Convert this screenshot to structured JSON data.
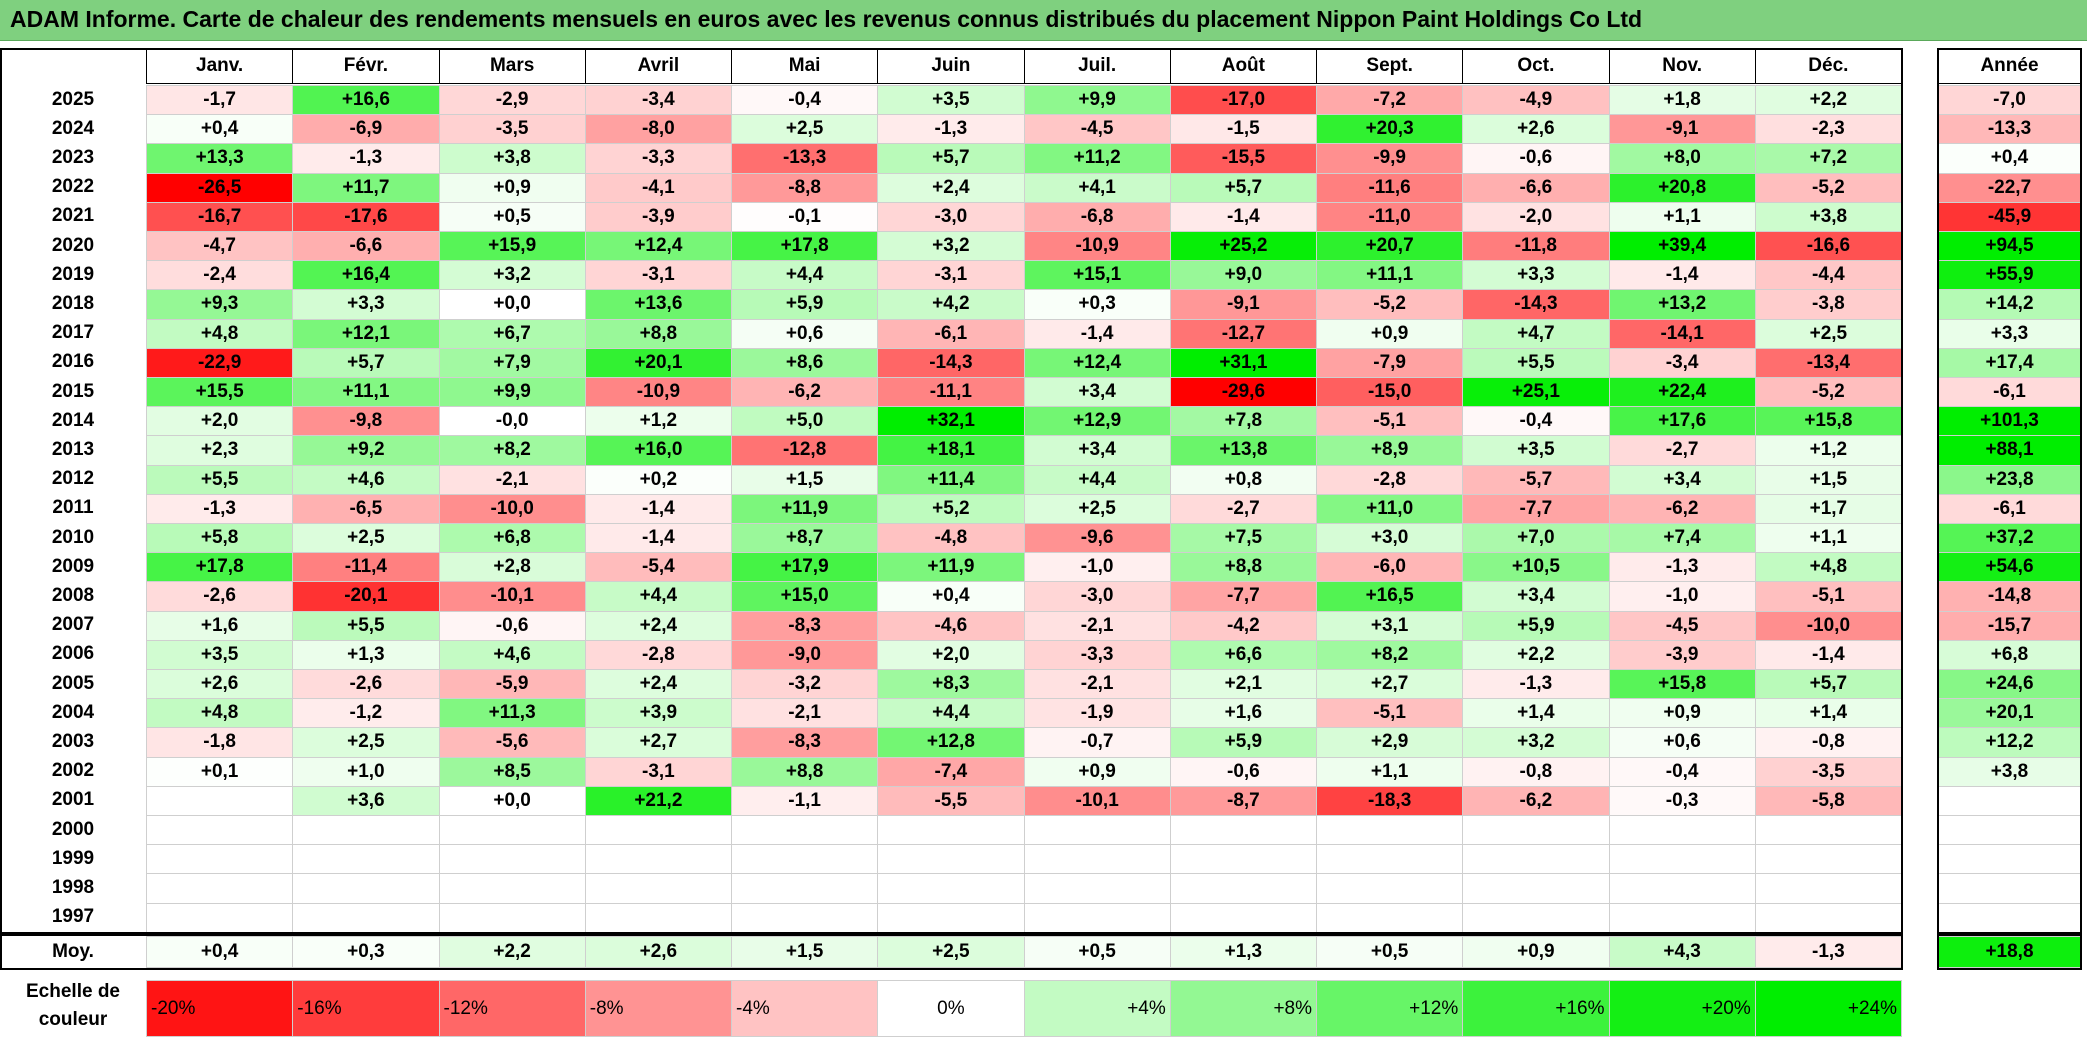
{
  "title": "ADAM Informe. Carte de chaleur des rendements mensuels en euros avec les revenus connus distribués du placement Nippon Paint Holdings Co Ltd",
  "chart_data": {
    "type": "heatmap",
    "title": "ADAM Informe. Carte de chaleur des rendements mensuels en euros avec les revenus connus distribués du placement Nippon Paint Holdings Co Ltd",
    "columns": [
      "Janv.",
      "Févr.",
      "Mars",
      "Avril",
      "Mai",
      "Juin",
      "Juil.",
      "Août",
      "Sept.",
      "Oct.",
      "Nov.",
      "Déc."
    ],
    "year_column_label": "Année",
    "rows": [
      {
        "year": "2025",
        "values": [
          "-1,7",
          "+16,6",
          "-2,9",
          "-3,4",
          "-0,4",
          "+3,5",
          "+9,9",
          "-17,0",
          "-7,2",
          "-4,9",
          "+1,8",
          "+2,2"
        ],
        "annual": "-7,0"
      },
      {
        "year": "2024",
        "values": [
          "+0,4",
          "-6,9",
          "-3,5",
          "-8,0",
          "+2,5",
          "-1,3",
          "-4,5",
          "-1,5",
          "+20,3",
          "+2,6",
          "-9,1",
          "-2,3"
        ],
        "annual": "-13,3"
      },
      {
        "year": "2023",
        "values": [
          "+13,3",
          "-1,3",
          "+3,8",
          "-3,3",
          "-13,3",
          "+5,7",
          "+11,2",
          "-15,5",
          "-9,9",
          "-0,6",
          "+8,0",
          "+7,2"
        ],
        "annual": "+0,4"
      },
      {
        "year": "2022",
        "values": [
          "-26,5",
          "+11,7",
          "+0,9",
          "-4,1",
          "-8,8",
          "+2,4",
          "+4,1",
          "+5,7",
          "-11,6",
          "-6,6",
          "+20,8",
          "-5,2"
        ],
        "annual": "-22,7"
      },
      {
        "year": "2021",
        "values": [
          "-16,7",
          "-17,6",
          "+0,5",
          "-3,9",
          "-0,1",
          "-3,0",
          "-6,8",
          "-1,4",
          "-11,0",
          "-2,0",
          "+1,1",
          "+3,8"
        ],
        "annual": "-45,9"
      },
      {
        "year": "2020",
        "values": [
          "-4,7",
          "-6,6",
          "+15,9",
          "+12,4",
          "+17,8",
          "+3,2",
          "-10,9",
          "+25,2",
          "+20,7",
          "-11,8",
          "+39,4",
          "-16,6"
        ],
        "annual": "+94,5"
      },
      {
        "year": "2019",
        "values": [
          "-2,4",
          "+16,4",
          "+3,2",
          "-3,1",
          "+4,4",
          "-3,1",
          "+15,1",
          "+9,0",
          "+11,1",
          "+3,3",
          "-1,4",
          "-4,4"
        ],
        "annual": "+55,9"
      },
      {
        "year": "2018",
        "values": [
          "+9,3",
          "+3,3",
          "+0,0",
          "+13,6",
          "+5,9",
          "+4,2",
          "+0,3",
          "-9,1",
          "-5,2",
          "-14,3",
          "+13,2",
          "-3,8"
        ],
        "annual": "+14,2"
      },
      {
        "year": "2017",
        "values": [
          "+4,8",
          "+12,1",
          "+6,7",
          "+8,8",
          "+0,6",
          "-6,1",
          "-1,4",
          "-12,7",
          "+0,9",
          "+4,7",
          "-14,1",
          "+2,5"
        ],
        "annual": "+3,3"
      },
      {
        "year": "2016",
        "values": [
          "-22,9",
          "+5,7",
          "+7,9",
          "+20,1",
          "+8,6",
          "-14,3",
          "+12,4",
          "+31,1",
          "-7,9",
          "+5,5",
          "-3,4",
          "-13,4"
        ],
        "annual": "+17,4"
      },
      {
        "year": "2015",
        "values": [
          "+15,5",
          "+11,1",
          "+9,9",
          "-10,9",
          "-6,2",
          "-11,1",
          "+3,4",
          "-29,6",
          "-15,0",
          "+25,1",
          "+22,4",
          "-5,2"
        ],
        "annual": "-6,1"
      },
      {
        "year": "2014",
        "values": [
          "+2,0",
          "-9,8",
          "-0,0",
          "+1,2",
          "+5,0",
          "+32,1",
          "+12,9",
          "+7,8",
          "-5,1",
          "-0,4",
          "+17,6",
          "+15,8"
        ],
        "annual": "+101,3"
      },
      {
        "year": "2013",
        "values": [
          "+2,3",
          "+9,2",
          "+8,2",
          "+16,0",
          "-12,8",
          "+18,1",
          "+3,4",
          "+13,8",
          "+8,9",
          "+3,5",
          "-2,7",
          "+1,2"
        ],
        "annual": "+88,1"
      },
      {
        "year": "2012",
        "values": [
          "+5,5",
          "+4,6",
          "-2,1",
          "+0,2",
          "+1,5",
          "+11,4",
          "+4,4",
          "+0,8",
          "-2,8",
          "-5,7",
          "+3,4",
          "+1,5"
        ],
        "annual": "+23,8"
      },
      {
        "year": "2011",
        "values": [
          "-1,3",
          "-6,5",
          "-10,0",
          "-1,4",
          "+11,9",
          "+5,2",
          "+2,5",
          "-2,7",
          "+11,0",
          "-7,7",
          "-6,2",
          "+1,7"
        ],
        "annual": "-6,1"
      },
      {
        "year": "2010",
        "values": [
          "+5,8",
          "+2,5",
          "+6,8",
          "-1,4",
          "+8,7",
          "-4,8",
          "-9,6",
          "+7,5",
          "+3,0",
          "+7,0",
          "+7,4",
          "+1,1"
        ],
        "annual": "+37,2"
      },
      {
        "year": "2009",
        "values": [
          "+17,8",
          "-11,4",
          "+2,8",
          "-5,4",
          "+17,9",
          "+11,9",
          "-1,0",
          "+8,8",
          "-6,0",
          "+10,5",
          "-1,3",
          "+4,8"
        ],
        "annual": "+54,6"
      },
      {
        "year": "2008",
        "values": [
          "-2,6",
          "-20,1",
          "-10,1",
          "+4,4",
          "+15,0",
          "+0,4",
          "-3,0",
          "-7,7",
          "+16,5",
          "+3,4",
          "-1,0",
          "-5,1"
        ],
        "annual": "-14,8"
      },
      {
        "year": "2007",
        "values": [
          "+1,6",
          "+5,5",
          "-0,6",
          "+2,4",
          "-8,3",
          "-4,6",
          "-2,1",
          "-4,2",
          "+3,1",
          "+5,9",
          "-4,5",
          "-10,0"
        ],
        "annual": "-15,7"
      },
      {
        "year": "2006",
        "values": [
          "+3,5",
          "+1,3",
          "+4,6",
          "-2,8",
          "-9,0",
          "+2,0",
          "-3,3",
          "+6,6",
          "+8,2",
          "+2,2",
          "-3,9",
          "-1,4"
        ],
        "annual": "+6,8"
      },
      {
        "year": "2005",
        "values": [
          "+2,6",
          "-2,6",
          "-5,9",
          "+2,4",
          "-3,2",
          "+8,3",
          "-2,1",
          "+2,1",
          "+2,7",
          "-1,3",
          "+15,8",
          "+5,7"
        ],
        "annual": "+24,6"
      },
      {
        "year": "2004",
        "values": [
          "+4,8",
          "-1,2",
          "+11,3",
          "+3,9",
          "-2,1",
          "+4,4",
          "-1,9",
          "+1,6",
          "-5,1",
          "+1,4",
          "+0,9",
          "+1,4"
        ],
        "annual": "+20,1"
      },
      {
        "year": "2003",
        "values": [
          "-1,8",
          "+2,5",
          "-5,6",
          "+2,7",
          "-8,3",
          "+12,8",
          "-0,7",
          "+5,9",
          "+2,9",
          "+3,2",
          "+0,6",
          "-0,8"
        ],
        "annual": "+12,2"
      },
      {
        "year": "2002",
        "values": [
          "+0,1",
          "+1,0",
          "+8,5",
          "-3,1",
          "+8,8",
          "-7,4",
          "+0,9",
          "-0,6",
          "+1,1",
          "-0,8",
          "-0,4",
          "-3,5"
        ],
        "annual": "+3,8"
      },
      {
        "year": "2001",
        "values": [
          "",
          "+3,6",
          "+0,0",
          "+21,2",
          "-1,1",
          "-5,5",
          "-10,1",
          "-8,7",
          "-18,3",
          "-6,2",
          "-0,3",
          "-5,8"
        ],
        "annual": ""
      },
      {
        "year": "2000",
        "values": [
          "",
          "",
          "",
          "",
          "",
          "",
          "",
          "",
          "",
          "",
          "",
          ""
        ],
        "annual": ""
      },
      {
        "year": "1999",
        "values": [
          "",
          "",
          "",
          "",
          "",
          "",
          "",
          "",
          "",
          "",
          "",
          ""
        ],
        "annual": ""
      },
      {
        "year": "1998",
        "values": [
          "",
          "",
          "",
          "",
          "",
          "",
          "",
          "",
          "",
          "",
          "",
          ""
        ],
        "annual": ""
      },
      {
        "year": "1997",
        "values": [
          "",
          "",
          "",
          "",
          "",
          "",
          "",
          "",
          "",
          "",
          "",
          ""
        ],
        "annual": ""
      }
    ],
    "average": {
      "label": "Moy.",
      "values": [
        "+0,4",
        "+0,3",
        "+2,2",
        "+2,6",
        "+1,5",
        "+2,5",
        "+0,5",
        "+1,3",
        "+0,5",
        "+0,9",
        "+4,3",
        "-1,3"
      ],
      "annual": "+18,8"
    },
    "legend": {
      "label": "Echelle de couleur",
      "steps": [
        "-20%",
        "-16%",
        "-12%",
        "-8%",
        "-4%",
        "0%",
        "+4%",
        "+8%",
        "+12%",
        "+16%",
        "+20%",
        "+24%"
      ]
    },
    "colors": {
      "negative_max": "#ff0000",
      "neutral": "#ffffff",
      "positive_max": "#00ee00",
      "title_bar": "#7fd07f"
    }
  }
}
